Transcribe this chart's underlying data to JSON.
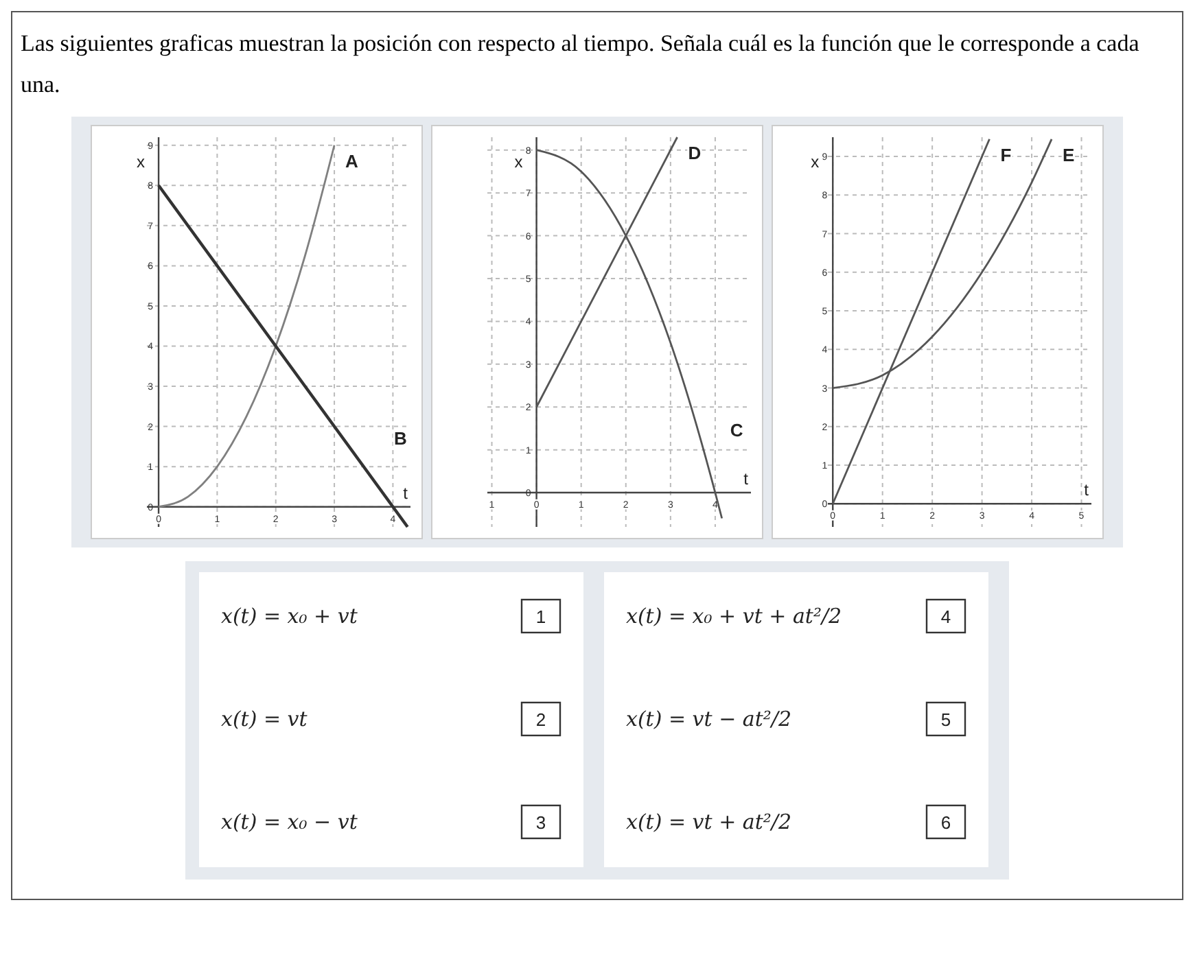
{
  "chart_data": [
    {
      "type": "other",
      "title": "Las siguientes graficas muestran la posición con respecto al tiempo. Señala cuál es la función que le corresponde a cada una."
    },
    {
      "type": "line",
      "xlabel": "t",
      "ylabel": "x",
      "xlim": [
        -0.2,
        4.3
      ],
      "ylim": [
        -0.5,
        9.2
      ],
      "xticks": [
        0,
        1,
        2,
        3,
        4
      ],
      "yticks": [
        0,
        1,
        2,
        3,
        4,
        5,
        6,
        7,
        8,
        9
      ],
      "grid": true,
      "series": [
        {
          "name": "A",
          "color": "#808080",
          "x": [
            0,
            0.5,
            1,
            1.5,
            2,
            2.5,
            3
          ],
          "values": [
            0,
            0.25,
            1,
            2.25,
            4,
            6.25,
            9
          ]
        },
        {
          "name": "B",
          "color": "#333333",
          "x": [
            0,
            4.25
          ],
          "values": [
            8,
            -0.5
          ]
        }
      ]
    },
    {
      "type": "line",
      "xlabel": "t",
      "ylabel": "x",
      "xlim": [
        -1.1,
        4.8
      ],
      "ylim": [
        -0.8,
        8.3
      ],
      "xticks": [
        {
          "value": -1,
          "label": "1"
        },
        0,
        1,
        2,
        3,
        4
      ],
      "yticks": [
        0,
        1,
        2,
        3,
        4,
        5,
        6,
        7,
        8
      ],
      "grid": true,
      "series": [
        {
          "name": "C",
          "color": "#555555",
          "x": [
            0,
            1,
            2,
            3,
            4,
            4.15
          ],
          "values": [
            8,
            7.5,
            6,
            3.5,
            0,
            -0.6
          ]
        },
        {
          "name": "D",
          "color": "#555555",
          "x": [
            0,
            3.15
          ],
          "values": [
            2,
            8.3
          ]
        }
      ]
    },
    {
      "type": "line",
      "xlabel": "t",
      "ylabel": "x",
      "xlim": [
        -0.1,
        5.2
      ],
      "ylim": [
        -0.6,
        9.5
      ],
      "xticks": [
        0,
        1,
        2,
        3,
        4,
        5
      ],
      "yticks": [
        0,
        1,
        2,
        3,
        4,
        5,
        6,
        7,
        8,
        9
      ],
      "grid": true,
      "series": [
        {
          "name": "F",
          "color": "#555555",
          "x": [
            0,
            3.15
          ],
          "values": [
            0,
            9.45
          ]
        },
        {
          "name": "E",
          "color": "#555555",
          "x": [
            0,
            1,
            2,
            3,
            4,
            4.4
          ],
          "values": [
            3,
            3.33,
            4.33,
            6,
            8.33,
            9.45
          ]
        }
      ]
    },
    {
      "type": "other",
      "annotations": [
        "x(t) = x₀ + vt",
        "1",
        "x(t) = vt",
        "2",
        "x(t) = x₀ − vt",
        "3",
        "x(t) = x₀ + vt + at²/2",
        "4",
        "x(t) = vt − at²/2",
        "5",
        "x(t) = vt + at²/2",
        "6"
      ]
    }
  ]
}
